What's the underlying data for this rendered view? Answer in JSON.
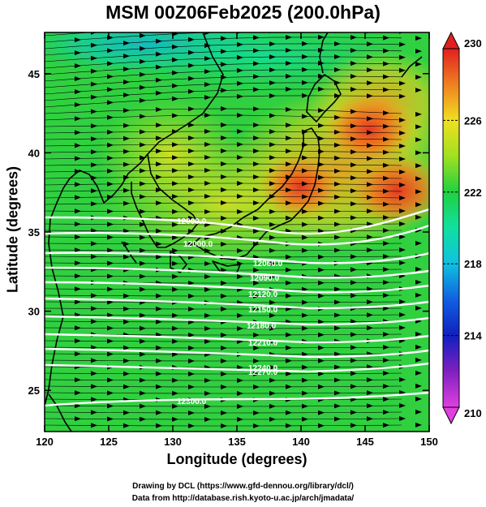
{
  "title": "MSM 00Z06Feb2025 (200.0hPa)",
  "map": {
    "xlabel": "Longitude (degrees)",
    "ylabel": "Latitude  (degrees)",
    "lon_range": [
      120,
      150
    ],
    "lat_range": [
      22.4,
      47.6
    ],
    "lon_ticks": [
      "120",
      "125",
      "130",
      "135",
      "140",
      "145",
      "150"
    ],
    "lat_ticks": [
      "25",
      "30",
      "35",
      "40",
      "45"
    ]
  },
  "colorbar": {
    "variable": "temperature",
    "min": 210,
    "max": 230,
    "tick_labels": [
      "230",
      "226",
      "222",
      "218",
      "214",
      "210"
    ],
    "colors": [
      "#e040e0",
      "#8020c0",
      "#1020c0",
      "#1060e0",
      "#10c0e0",
      "#10e0a0",
      "#20d040",
      "#a0e020",
      "#f0e020",
      "#f0a020",
      "#f06020",
      "#e02020"
    ]
  },
  "contours": {
    "color": "#ffffff",
    "labels": [
      "12000.0",
      "12000.0",
      "12060.0",
      "12090.0",
      "12120.0",
      "12150.0",
      "12180.0",
      "12210.0",
      "12240.0",
      "12270.0",
      "12300.0"
    ]
  },
  "wind": {
    "style": "streamlines",
    "direction": "westerly"
  },
  "credits": {
    "line1": "Drawing by DCL (https://www.gfd-dennou.org/library/dcl/)",
    "line2": "Data from http://database.rish.kyoto-u.ac.jp/arch/jmadata/"
  }
}
